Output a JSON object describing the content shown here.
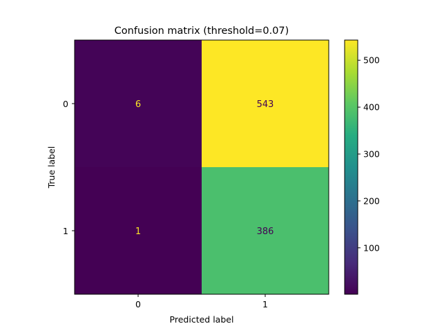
{
  "chart_data": {
    "type": "heatmap",
    "title": "Confusion matrix (threshold=0.07)",
    "xlabel": "Predicted label",
    "ylabel": "True label",
    "x_categories": [
      "0",
      "1"
    ],
    "y_categories": [
      "0",
      "1"
    ],
    "values": [
      [
        6,
        543
      ],
      [
        1,
        386
      ]
    ],
    "colormap": "viridis",
    "colorbar": {
      "range": [
        1,
        543
      ],
      "ticks": [
        100,
        200,
        300,
        400,
        500
      ],
      "tick_labels": [
        "100",
        "200",
        "300",
        "400",
        "500"
      ]
    },
    "grid": false
  },
  "colors": {
    "text_on_dark": "#fde725",
    "text_on_light": "#440154",
    "axis": "#000000"
  }
}
